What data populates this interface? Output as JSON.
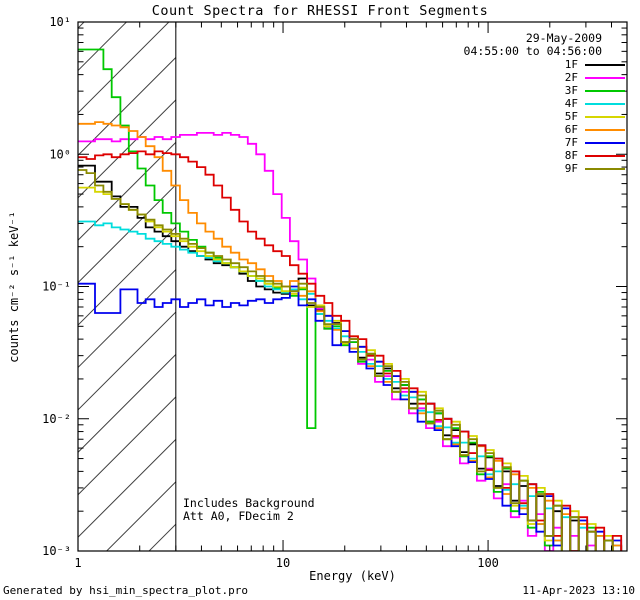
{
  "page": {
    "footer_left": "Generated by hsi_min_spectra_plot.pro",
    "footer_right": "11-Apr-2023 13:10"
  },
  "chart_data": {
    "type": "line",
    "mode": "steps",
    "title": "Count Spectra for RHESSI Front Segments",
    "date_label": "29-May-2009",
    "time_range_label": "04:55:00 to 04:56:00",
    "xlabel": "Energy (keV)",
    "ylabel": "counts cm⁻² s⁻¹ keV⁻¹",
    "xscale": "log",
    "yscale": "log",
    "xlim": [
      1,
      476
    ],
    "ylim": [
      0.001,
      10
    ],
    "x_ticks": [
      {
        "v": 1,
        "label": "1"
      },
      {
        "v": 10,
        "label": "10"
      },
      {
        "v": 100,
        "label": "100"
      }
    ],
    "y_ticks": [
      {
        "v": 10,
        "label": "10¹"
      },
      {
        "v": 1,
        "label": "10⁰"
      },
      {
        "v": 0.1,
        "label": "10⁻¹"
      },
      {
        "v": 0.01,
        "label": "10⁻²"
      },
      {
        "v": 0.001,
        "label": "10⁻³"
      }
    ],
    "annotations": [
      "Includes Background",
      "Att A0, FDecim 2"
    ],
    "hatch_region": {
      "xmin": 1,
      "xmax": 3
    },
    "boundary_line_kev": 3,
    "x": [
      1.0,
      1.1,
      1.21,
      1.33,
      1.46,
      1.61,
      1.77,
      1.95,
      2.14,
      2.36,
      2.59,
      2.85,
      3.14,
      3.45,
      3.8,
      4.18,
      4.59,
      5.05,
      5.56,
      6.12,
      6.73,
      7.4,
      8.14,
      8.95,
      9.85,
      10.8,
      11.9,
      13.1,
      14.4,
      15.9,
      17.4,
      19.2,
      21.1,
      23.2,
      25.5,
      28.1,
      30.9,
      34.0,
      37.4,
      41.1,
      45.3,
      49.8,
      54.8,
      60.2,
      66.3,
      72.9,
      80.2,
      88.2,
      97.0,
      106.7,
      117.4,
      129.1,
      142.0,
      156.2,
      171.9,
      189.1,
      208.0,
      228.8,
      251.6,
      276.8,
      304.5,
      334.9,
      368.4,
      405.3,
      445.8
    ],
    "series": [
      {
        "name": "1F",
        "color": "#000000",
        "y": [
          0.82,
          0.82,
          0.62,
          0.62,
          0.48,
          0.4,
          0.4,
          0.33,
          0.28,
          0.26,
          0.24,
          0.22,
          0.2,
          0.185,
          0.17,
          0.16,
          0.15,
          0.145,
          0.14,
          0.125,
          0.11,
          0.1,
          0.095,
          0.09,
          0.088,
          0.095,
          0.115,
          0.072,
          0.066,
          0.05,
          0.053,
          0.038,
          0.04,
          0.029,
          0.031,
          0.022,
          0.024,
          0.017,
          0.018,
          0.013,
          0.014,
          0.0095,
          0.011,
          0.0075,
          0.0082,
          0.0056,
          0.0064,
          0.0042,
          0.0051,
          0.0031,
          0.004,
          0.0024,
          0.0031,
          0.0017,
          0.0026,
          0.0013,
          0.002,
          0.00095,
          0.0017,
          0.00075,
          0.0014,
          0.0006,
          0.0012,
          0.0005,
          0.0011
        ]
      },
      {
        "name": "2F",
        "color": "#ff00ff",
        "y": [
          1.25,
          1.25,
          1.3,
          1.3,
          1.25,
          1.3,
          1.3,
          1.35,
          1.3,
          1.35,
          1.3,
          1.35,
          1.4,
          1.4,
          1.45,
          1.45,
          1.4,
          1.45,
          1.4,
          1.35,
          1.2,
          1.0,
          0.75,
          0.5,
          0.33,
          0.22,
          0.16,
          0.115,
          0.068,
          0.048,
          0.052,
          0.036,
          0.038,
          0.026,
          0.028,
          0.019,
          0.021,
          0.014,
          0.016,
          0.011,
          0.012,
          0.0085,
          0.0095,
          0.0062,
          0.0072,
          0.0046,
          0.0055,
          0.0034,
          0.0042,
          0.0025,
          0.0032,
          0.0018,
          0.0024,
          0.0013,
          0.0019,
          0.001,
          0.0015,
          0.00085,
          0.0013,
          0.0007,
          0.0011,
          0.00058,
          0.00092,
          0.00048,
          0.0008
        ]
      },
      {
        "name": "3F",
        "color": "#00c800",
        "y": [
          6.2,
          6.2,
          6.2,
          4.4,
          2.7,
          1.65,
          1.05,
          0.78,
          0.58,
          0.45,
          0.36,
          0.3,
          0.26,
          0.225,
          0.2,
          0.18,
          0.165,
          0.15,
          0.14,
          0.13,
          0.12,
          0.11,
          0.105,
          0.098,
          0.092,
          0.085,
          0.095,
          0.0085,
          0.062,
          0.048,
          0.05,
          0.036,
          0.038,
          0.027,
          0.03,
          0.021,
          0.023,
          0.016,
          0.018,
          0.012,
          0.014,
          0.0095,
          0.011,
          0.007,
          0.0085,
          0.0052,
          0.0066,
          0.0038,
          0.0052,
          0.0028,
          0.0042,
          0.002,
          0.0034,
          0.0015,
          0.0028,
          0.0011,
          0.0022,
          0.00085,
          0.0018,
          0.00065,
          0.0015,
          0.00052,
          0.0012,
          0.00042,
          0.001
        ]
      },
      {
        "name": "4F",
        "color": "#00dddd",
        "y": [
          0.31,
          0.31,
          0.29,
          0.3,
          0.28,
          0.27,
          0.26,
          0.25,
          0.23,
          0.22,
          0.21,
          0.2,
          0.19,
          0.18,
          0.17,
          0.165,
          0.155,
          0.15,
          0.14,
          0.13,
          0.12,
          0.11,
          0.1,
          0.095,
          0.09,
          0.095,
          0.08,
          0.088,
          0.062,
          0.055,
          0.048,
          0.042,
          0.034,
          0.032,
          0.026,
          0.025,
          0.02,
          0.019,
          0.015,
          0.0145,
          0.0115,
          0.0112,
          0.0088,
          0.0086,
          0.0066,
          0.0066,
          0.005,
          0.0052,
          0.0038,
          0.004,
          0.0029,
          0.0032,
          0.0022,
          0.0026,
          0.0016,
          0.0021,
          0.0012,
          0.0018,
          0.0009,
          0.0015,
          0.0007,
          0.0013,
          0.00055,
          0.0011,
          0.00045
        ]
      },
      {
        "name": "5F",
        "color": "#d6d600",
        "y": [
          0.56,
          0.56,
          0.52,
          0.5,
          0.46,
          0.42,
          0.38,
          0.35,
          0.31,
          0.28,
          0.26,
          0.24,
          0.22,
          0.2,
          0.185,
          0.17,
          0.16,
          0.15,
          0.14,
          0.13,
          0.12,
          0.115,
          0.105,
          0.1,
          0.092,
          0.088,
          0.098,
          0.07,
          0.072,
          0.05,
          0.055,
          0.037,
          0.042,
          0.028,
          0.033,
          0.021,
          0.026,
          0.016,
          0.02,
          0.012,
          0.016,
          0.0092,
          0.012,
          0.007,
          0.0095,
          0.0053,
          0.0074,
          0.004,
          0.0058,
          0.003,
          0.0046,
          0.0022,
          0.0037,
          0.0016,
          0.003,
          0.0012,
          0.0024,
          0.0009,
          0.002,
          0.0007,
          0.0016,
          0.00055,
          0.0013,
          0.00045,
          0.0011
        ]
      },
      {
        "name": "6F",
        "color": "#ff8c00",
        "y": [
          1.7,
          1.7,
          1.75,
          1.7,
          1.65,
          1.6,
          1.5,
          1.35,
          1.15,
          0.95,
          0.75,
          0.58,
          0.45,
          0.36,
          0.3,
          0.26,
          0.23,
          0.2,
          0.18,
          0.16,
          0.15,
          0.135,
          0.12,
          0.11,
          0.1,
          0.11,
          0.085,
          0.092,
          0.065,
          0.06,
          0.047,
          0.046,
          0.034,
          0.035,
          0.025,
          0.027,
          0.019,
          0.021,
          0.014,
          0.016,
          0.011,
          0.013,
          0.0085,
          0.01,
          0.0064,
          0.008,
          0.0048,
          0.0062,
          0.0036,
          0.0048,
          0.0027,
          0.0038,
          0.0021,
          0.003,
          0.0016,
          0.0024,
          0.0012,
          0.0019,
          0.00092,
          0.0016,
          0.00072,
          0.0013,
          0.00058,
          0.0011,
          0.0009
        ]
      },
      {
        "name": "7F",
        "color": "#0000ee",
        "y": [
          0.105,
          0.105,
          0.063,
          0.063,
          0.063,
          0.095,
          0.095,
          0.075,
          0.08,
          0.07,
          0.075,
          0.08,
          0.07,
          0.075,
          0.08,
          0.072,
          0.078,
          0.07,
          0.075,
          0.072,
          0.078,
          0.08,
          0.075,
          0.08,
          0.082,
          0.1,
          0.072,
          0.08,
          0.055,
          0.06,
          0.036,
          0.046,
          0.032,
          0.035,
          0.024,
          0.027,
          0.018,
          0.021,
          0.014,
          0.016,
          0.0095,
          0.013,
          0.0082,
          0.01,
          0.0062,
          0.008,
          0.0047,
          0.0063,
          0.0035,
          0.005,
          0.0022,
          0.004,
          0.0019,
          0.0032,
          0.0014,
          0.0026,
          0.0011,
          0.0021,
          0.0008,
          0.0017,
          0.00062,
          0.0014,
          0.0005,
          0.0012,
          0.0007
        ]
      },
      {
        "name": "8F",
        "color": "#dd0000",
        "y": [
          0.95,
          0.92,
          0.98,
          1.0,
          0.95,
          1.0,
          1.02,
          1.05,
          1.0,
          1.05,
          1.02,
          1.0,
          0.95,
          0.88,
          0.8,
          0.7,
          0.58,
          0.47,
          0.38,
          0.31,
          0.26,
          0.23,
          0.205,
          0.185,
          0.17,
          0.145,
          0.125,
          0.105,
          0.085,
          0.075,
          0.06,
          0.055,
          0.042,
          0.04,
          0.03,
          0.03,
          0.022,
          0.023,
          0.017,
          0.017,
          0.013,
          0.013,
          0.0098,
          0.01,
          0.0074,
          0.008,
          0.0055,
          0.0063,
          0.0041,
          0.005,
          0.003,
          0.004,
          0.0023,
          0.0032,
          0.0017,
          0.0027,
          0.0013,
          0.0022,
          0.001,
          0.0018,
          0.0008,
          0.0015,
          0.00062,
          0.0013,
          0.0006
        ]
      },
      {
        "name": "9F",
        "color": "#8a8a00",
        "y": [
          0.76,
          0.72,
          0.58,
          0.52,
          0.46,
          0.42,
          0.38,
          0.35,
          0.32,
          0.29,
          0.27,
          0.25,
          0.23,
          0.21,
          0.195,
          0.18,
          0.17,
          0.16,
          0.15,
          0.14,
          0.13,
          0.12,
          0.11,
          0.105,
          0.1,
          0.092,
          0.105,
          0.075,
          0.07,
          0.052,
          0.052,
          0.038,
          0.04,
          0.028,
          0.031,
          0.021,
          0.025,
          0.016,
          0.019,
          0.012,
          0.015,
          0.0092,
          0.0115,
          0.007,
          0.009,
          0.0053,
          0.007,
          0.004,
          0.0055,
          0.003,
          0.0043,
          0.0023,
          0.0034,
          0.0017,
          0.0027,
          0.0013,
          0.0022,
          0.00095,
          0.0018,
          0.00072,
          0.0014,
          0.00055,
          0.0012,
          0.00042,
          0.0009
        ]
      }
    ]
  }
}
